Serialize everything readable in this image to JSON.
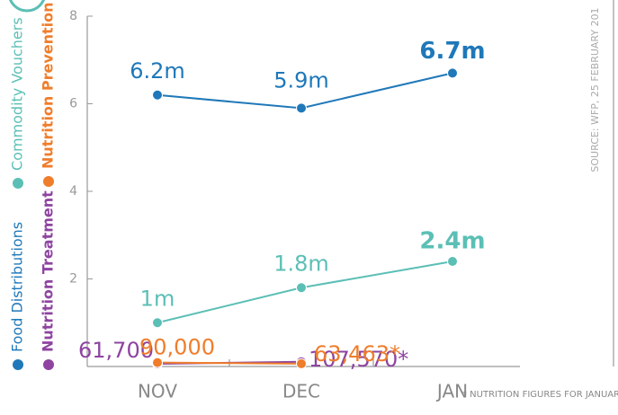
{
  "chart_data": {
    "type": "line",
    "categories": [
      "NOV",
      "DEC",
      "JAN"
    ],
    "ylim": [
      0,
      8
    ],
    "yticks": [
      2,
      4,
      6,
      8
    ],
    "series": [
      {
        "name": "Food Distributions",
        "color": "#1f78b9",
        "values": [
          6.2,
          5.9,
          6.7
        ],
        "value_labels": [
          "6.2m",
          "5.9m",
          "6.7m"
        ]
      },
      {
        "name": "Commodity Vouchers",
        "color": "#5bbfb5",
        "values": [
          1,
          1.8,
          2.4
        ],
        "value_labels": [
          "1m",
          "1.8m",
          "2.4m"
        ]
      },
      {
        "name": "Nutrition Treatment",
        "color": "#8e44a0",
        "values": [
          0.0617,
          0.10757,
          null
        ],
        "value_labels": [
          "61,700",
          "107,570*",
          null
        ]
      },
      {
        "name": "Nutrition Prevention",
        "color": "#ef7d2b",
        "values": [
          0.09,
          0.063463,
          null
        ],
        "value_labels": [
          "90,000",
          "63,463*",
          null
        ]
      }
    ],
    "legend": "left",
    "annotation": "* NUTRITION FIGURES FOR JANUARY NOT YET AVAILABLE",
    "source": "SOURCE: WFP, 25 FEBRUARY 201"
  }
}
